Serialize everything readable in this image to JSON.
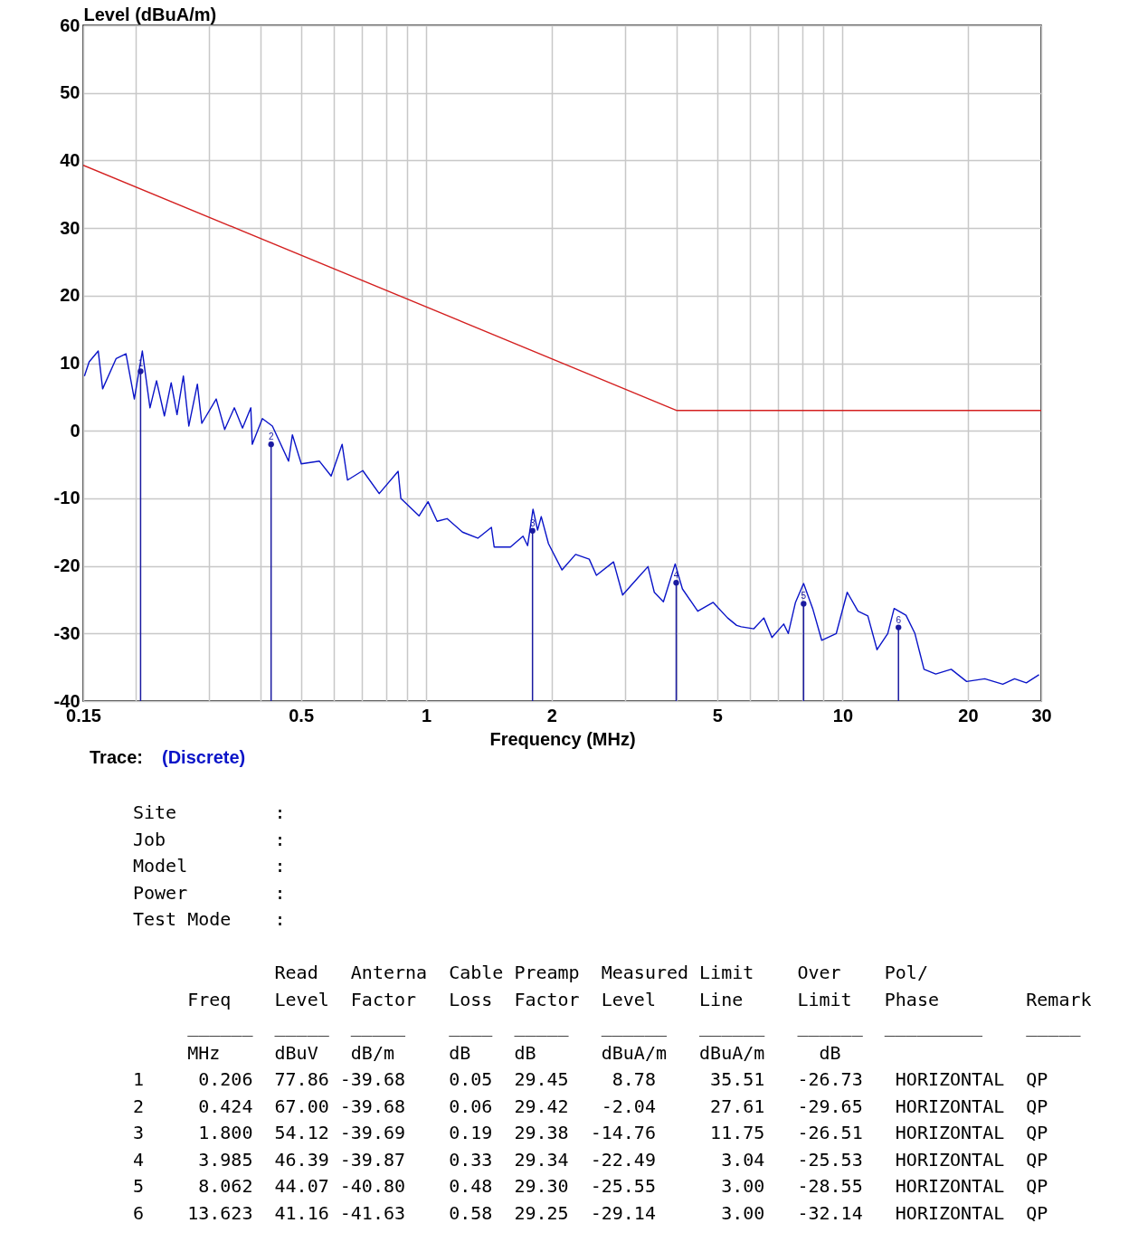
{
  "chart_data": {
    "type": "line",
    "xlabel": "Frequency (MHz)",
    "ylabel": "Level (dBuA/m)",
    "legend_title": "Trace:",
    "legend": "bottom left",
    "log": "x",
    "grid": true,
    "xlim": [
      0.15,
      30
    ],
    "ylim": [
      -40,
      60
    ],
    "xticks": [
      0.15,
      {
        "value": 0.2,
        "label": null
      },
      {
        "value": 0.3,
        "label": null
      },
      {
        "value": 0.4,
        "label": null
      },
      0.5,
      {
        "value": 0.6,
        "label": null
      },
      {
        "value": 0.7,
        "label": null
      },
      {
        "value": 0.8,
        "label": null
      },
      {
        "value": 0.9,
        "label": null
      },
      1,
      2,
      {
        "value": 3,
        "label": null
      },
      {
        "value": 4,
        "label": null
      },
      5,
      {
        "value": 6,
        "label": null
      },
      {
        "value": 7,
        "label": null
      },
      {
        "value": 8,
        "label": null
      },
      {
        "value": 9,
        "label": null
      },
      10,
      20,
      30
    ],
    "yticks": [
      -40,
      -30,
      -20,
      -10,
      0,
      10,
      20,
      30,
      40,
      50,
      60
    ],
    "series": [
      {
        "name": "(Discrete)",
        "color": "#0a14c8",
        "x": [
          0.151,
          0.155,
          0.163,
          0.167,
          0.18,
          0.19,
          0.199,
          0.208,
          0.217,
          0.225,
          0.235,
          0.244,
          0.252,
          0.261,
          0.269,
          0.282,
          0.289,
          0.313,
          0.328,
          0.346,
          0.362,
          0.379,
          0.382,
          0.404,
          0.427,
          0.467,
          0.477,
          0.501,
          0.554,
          0.591,
          0.628,
          0.647,
          0.704,
          0.771,
          0.856,
          0.869,
          0.961,
          1.01,
          1.062,
          1.122,
          1.222,
          1.33,
          1.434,
          1.456,
          1.593,
          1.708,
          1.752,
          1.805,
          1.851,
          1.889,
          1.966,
          2.119,
          2.284,
          2.463,
          2.563,
          2.818,
          2.963,
          3.21,
          3.409,
          3.53,
          3.712,
          3.962,
          4.124,
          4.489,
          4.889,
          5.295,
          5.568,
          5.709,
          6.123,
          6.47,
          6.767,
          7.222,
          7.406,
          7.707,
          8.061,
          8.476,
          8.91,
          9.658,
          10.26,
          10.89,
          11.5,
          12.1,
          12.84,
          13.3,
          14.2,
          14.92,
          15.69,
          16.74,
          18.24,
          19.86,
          21.95,
          24.26,
          25.89,
          27.63,
          29.64
        ],
        "values": [
          8.1,
          10.2,
          11.8,
          6.2,
          10.7,
          11.4,
          4.7,
          11.8,
          3.4,
          7.4,
          2.2,
          7.1,
          2.4,
          8.1,
          0.7,
          6.9,
          1.1,
          4.7,
          0.2,
          3.4,
          0.4,
          3.4,
          -2.0,
          1.8,
          0.7,
          -4.5,
          -0.6,
          -4.9,
          -4.5,
          -6.7,
          -2.0,
          -7.3,
          -5.9,
          -9.3,
          -6.0,
          -10.0,
          -12.6,
          -10.5,
          -13.4,
          -13.0,
          -15.0,
          -15.9,
          -14.3,
          -17.2,
          -17.2,
          -15.6,
          -17.0,
          -11.6,
          -14.7,
          -12.7,
          -16.7,
          -20.6,
          -18.3,
          -19.0,
          -21.4,
          -19.4,
          -24.3,
          -21.9,
          -20.1,
          -23.9,
          -25.3,
          -19.7,
          -23.4,
          -26.7,
          -25.4,
          -27.7,
          -28.8,
          -29.0,
          -29.3,
          -27.7,
          -30.6,
          -28.6,
          -30.0,
          -25.4,
          -22.6,
          -26.3,
          -31.0,
          -30.0,
          -23.9,
          -26.7,
          -27.4,
          -32.4,
          -30.0,
          -26.3,
          -27.3,
          -30.0,
          -35.3,
          -36.0,
          -35.3,
          -37.1,
          -36.7,
          -37.5,
          -36.7,
          -37.3,
          -36.1
        ]
      },
      {
        "color": "#d42020",
        "x": [
          0.15,
          4.0,
          30
        ],
        "values": [
          39.3,
          3.0,
          3.0
        ]
      },
      {
        "type": "lollipop",
        "marker": "circle",
        "color": "#1a1aa0",
        "x": [
          0.206,
          0.424,
          1.8,
          3.985,
          8.062,
          13.623
        ],
        "values": [
          8.8,
          -2.0,
          -14.8,
          -22.5,
          -25.6,
          -29.1
        ]
      }
    ],
    "annotations": [
      {
        "text": "1",
        "x": 0.206,
        "y": 8.8
      },
      {
        "text": "2",
        "x": 0.424,
        "y": -2.0
      },
      {
        "text": "3",
        "x": 1.8,
        "y": -14.8
      },
      {
        "text": "4",
        "x": 3.985,
        "y": -22.5
      },
      {
        "text": "5",
        "x": 8.062,
        "y": -25.6
      },
      {
        "text": "6",
        "x": 13.623,
        "y": -29.1
      },
      "Site         :",
      "Job          :",
      "Model        :",
      "Power        :",
      "Test Mode    :",
      "             Read   Anterna  Cable Preamp  Measured Limit    Over    Pol/",
      "     Freq    Level  Factor   Loss  Factor  Level    Line     Limit   Phase        Remark",
      "     ______  _____  _____    ____  _____   ______   ______   ______  _________    _____",
      "     MHz     dBuV   dB/m     dB    dB      dBuA/m   dBuA/m     dB",
      "1     0.206  77.86 -39.68    0.05  29.45    8.78     35.51   -26.73   HORIZONTAL  QP",
      "2     0.424  67.00 -39.68    0.06  29.42   -2.04     27.61   -29.65   HORIZONTAL  QP",
      "3     1.800  54.12 -39.69    0.19  29.38  -14.76     11.75   -26.51   HORIZONTAL  QP",
      "4     3.985  46.39 -39.87    0.33  29.34  -22.49      3.04   -25.53   HORIZONTAL  QP",
      "5     8.062  44.07 -40.80    0.48  29.30  -25.55      3.00   -28.55   HORIZONTAL  QP",
      "6    13.623  41.16 -41.63    0.58  29.25  -29.14      3.00   -32.14   HORIZONTAL  QP"
    ]
  }
}
